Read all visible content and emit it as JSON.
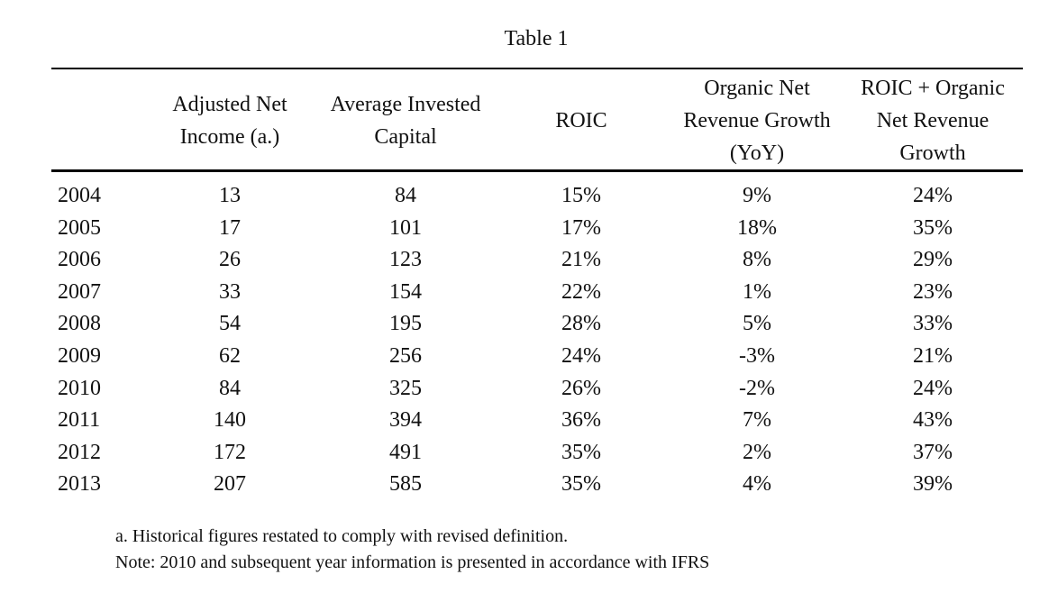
{
  "title": "Table 1",
  "headers": [
    "Adjusted Net\nIncome (a.)",
    "Average Invested\nCapital",
    "ROIC",
    "Organic Net\nRevenue Growth\n(YoY)",
    "ROIC + Organic\nNet Revenue\nGrowth"
  ],
  "rows": [
    {
      "year": "2004",
      "income": "13",
      "capital": "84",
      "roic": "15%",
      "growth": "9%",
      "sum": "24%"
    },
    {
      "year": "2005",
      "income": "17",
      "capital": "101",
      "roic": "17%",
      "growth": "18%",
      "sum": "35%"
    },
    {
      "year": "2006",
      "income": "26",
      "capital": "123",
      "roic": "21%",
      "growth": "8%",
      "sum": "29%"
    },
    {
      "year": "2007",
      "income": "33",
      "capital": "154",
      "roic": "22%",
      "growth": "1%",
      "sum": "23%"
    },
    {
      "year": "2008",
      "income": "54",
      "capital": "195",
      "roic": "28%",
      "growth": "5%",
      "sum": "33%"
    },
    {
      "year": "2009",
      "income": "62",
      "capital": "256",
      "roic": "24%",
      "growth": "-3%",
      "sum": "21%"
    },
    {
      "year": "2010",
      "income": "84",
      "capital": "325",
      "roic": "26%",
      "growth": "-2%",
      "sum": "24%"
    },
    {
      "year": "2011",
      "income": "140",
      "capital": "394",
      "roic": "36%",
      "growth": "7%",
      "sum": "43%"
    },
    {
      "year": "2012",
      "income": "172",
      "capital": "491",
      "roic": "35%",
      "growth": "2%",
      "sum": "37%"
    },
    {
      "year": "2013",
      "income": "207",
      "capital": "585",
      "roic": "35%",
      "growth": "4%",
      "sum": "39%"
    }
  ],
  "notes": [
    "a.  Historical figures restated to comply with revised definition.",
    "Note: 2010 and subsequent year information is presented in accordance with IFRS"
  ]
}
